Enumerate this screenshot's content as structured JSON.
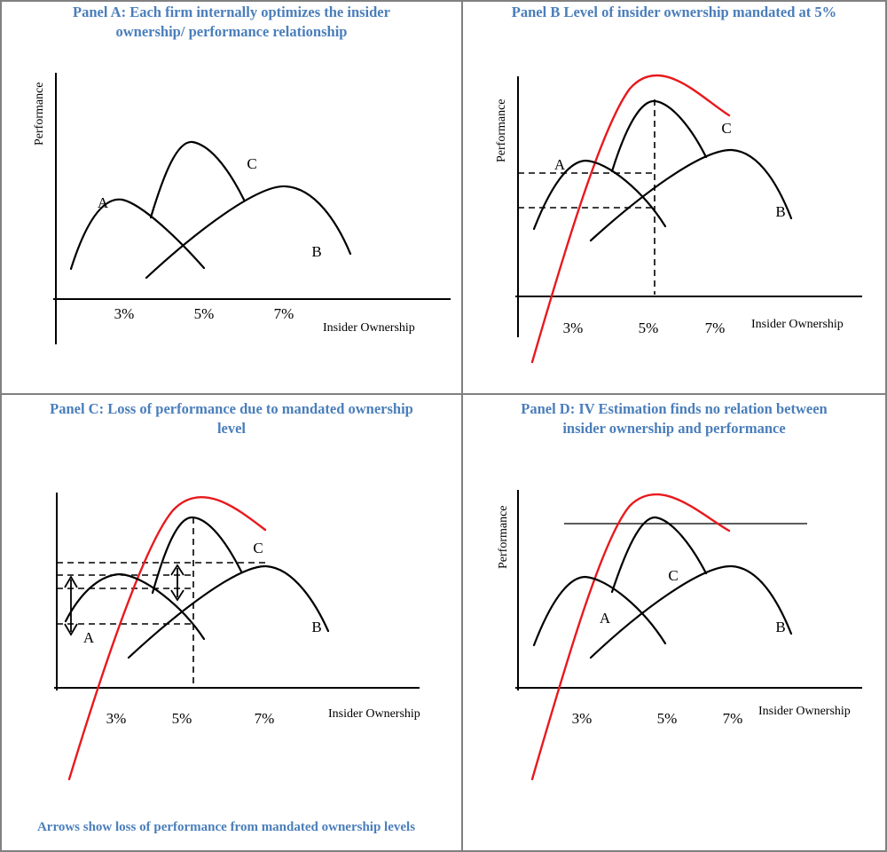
{
  "colors": {
    "title": "#4a7ebb",
    "red_curve": "#e8191d",
    "ink": "#000000",
    "border": "#808080"
  },
  "panels": {
    "a": {
      "title_line1": "Panel A: Each firm internally optimizes the insider",
      "title_line2": "ownership/ performance relationship",
      "ylabel": "Performance",
      "xlabel": "Insider Ownership",
      "ticks": [
        "3%",
        "5%",
        "7%"
      ],
      "curve_labels": {
        "a": "A",
        "b": "B",
        "c": "C"
      }
    },
    "b": {
      "title": "Panel B Level of insider ownership mandated at 5%",
      "ylabel": "Performance",
      "xlabel": "Insider Ownership",
      "ticks": [
        "3%",
        "5%",
        "7%"
      ],
      "curve_labels": {
        "a": "A",
        "b": "B",
        "c": "C"
      }
    },
    "c": {
      "title_line1": "Panel C:  Loss of performance due to mandated ownership",
      "title_line2": "level",
      "xlabel": "Insider Ownership",
      "ticks": [
        "3%",
        "5%",
        "7%"
      ],
      "curve_labels": {
        "a": "A",
        "b": "B",
        "c": "C"
      },
      "note": "Arrows show loss of performance from mandated ownership levels"
    },
    "d": {
      "title_line1": "Panel D:  IV Estimation finds no relation between",
      "title_line2": "insider ownership and performance",
      "ylabel": "Performance",
      "xlabel": "Insider Ownership",
      "ticks": [
        "3%",
        "5%",
        "7%"
      ],
      "curve_labels": {
        "a": "A",
        "b": "B",
        "c": "C"
      }
    }
  }
}
